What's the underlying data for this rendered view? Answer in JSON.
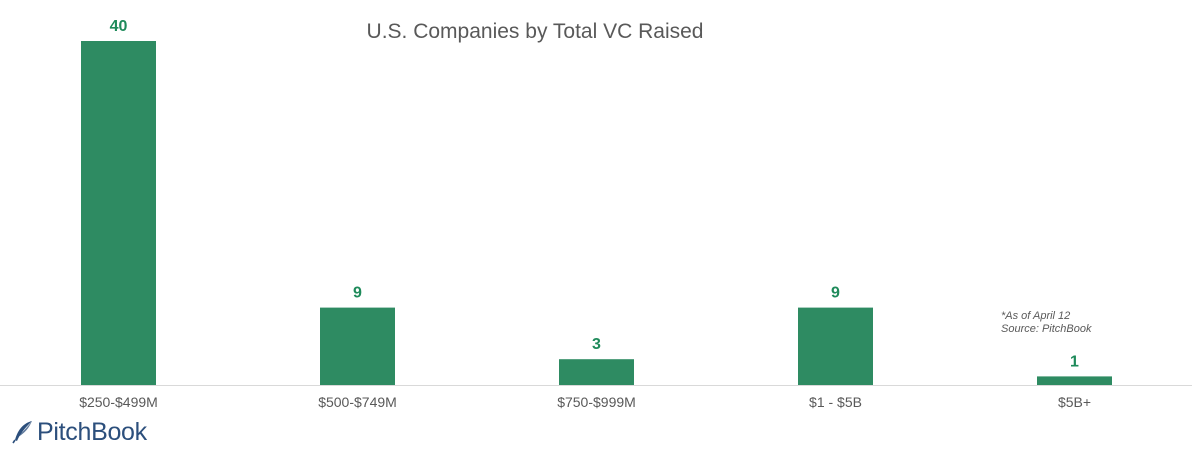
{
  "chart_data": {
    "type": "bar",
    "title": "U.S. Companies by Total VC Raised",
    "categories": [
      "$250-$499M",
      "$500-$749M",
      "$750-$999M",
      "$1 - $5B",
      "$5B+"
    ],
    "values": [
      40,
      9,
      3,
      9,
      1
    ],
    "data_labels": [
      "40",
      "9",
      "3",
      "9",
      "1"
    ],
    "xlabel": "",
    "ylabel": "",
    "ylim": [
      0,
      40
    ],
    "grid": false,
    "y_axis_visible": false,
    "bar_color": "#2e8b62",
    "label_color": "#1e8a5a",
    "tick_label_color": "#595959",
    "axis_color": "#d9d9d9"
  },
  "notes": {
    "as_of": "*As of April 12",
    "source": "Source: PitchBook"
  },
  "logo": {
    "text": "PitchBook",
    "icon": "quill-icon",
    "color": "#2c4f7c"
  }
}
